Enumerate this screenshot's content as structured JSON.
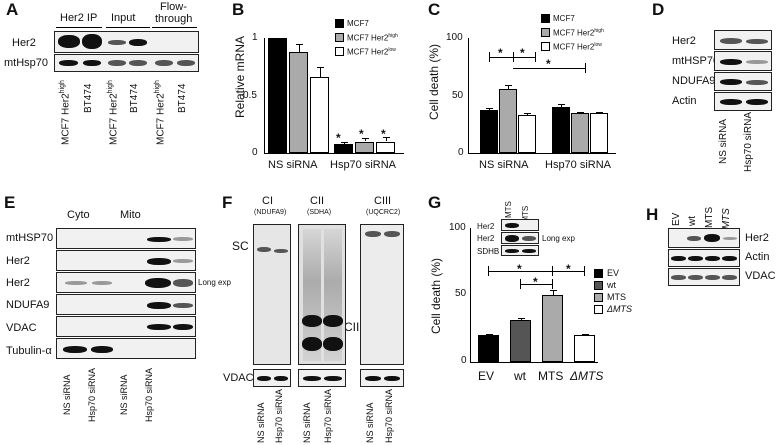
{
  "panels": {
    "A": {
      "letter": "A",
      "headers": [
        "Her2 IP",
        "Input",
        "Flow-",
        "through"
      ],
      "rows": [
        "Her2",
        "mtHsp70"
      ],
      "lanes": [
        "MCF7 Her2",
        "high",
        "BT474",
        "MCF7 Her2",
        "high",
        "BT474",
        "MCF7 Her2",
        "high",
        "BT474"
      ]
    },
    "B": {
      "letter": "B",
      "legend": [
        {
          "label": "MCF7",
          "sup": "",
          "color": "#000000"
        },
        {
          "label": "MCF7 Her2",
          "sup": "high",
          "color": "#aaaaaa"
        },
        {
          "label": "MCF7 Her2",
          "sup": "low",
          "color": "#ffffff"
        }
      ],
      "stars": [
        "*",
        "*",
        "*"
      ]
    },
    "C": {
      "letter": "C",
      "legend": [
        {
          "label": "MCF7",
          "sup": "",
          "color": "#000000"
        },
        {
          "label": "MCF7 Her2",
          "sup": "high",
          "color": "#aaaaaa"
        },
        {
          "label": "MCF7 Her2",
          "sup": "low",
          "color": "#ffffff"
        }
      ],
      "stars": [
        "*",
        "*",
        "*"
      ]
    },
    "D": {
      "letter": "D",
      "rows": [
        "Her2",
        "mtHSP70",
        "NDUFA9",
        "Actin"
      ],
      "lanes": [
        "NS siRNA",
        "Hsp70 siRNA"
      ]
    },
    "E": {
      "letter": "E",
      "headers": [
        "Cyto",
        "Mito"
      ],
      "rows": [
        "mtHSP70",
        "Her2",
        "Her2",
        "NDUFA9",
        "VDAC",
        "Tubulin-α"
      ],
      "note": "Long exp",
      "lanes": [
        "NS siRNA",
        "Hsp70 siRNA",
        "NS siRNA",
        "Hsp70 siRNA"
      ]
    },
    "F": {
      "letter": "F",
      "complexes": [
        {
          "name": "CI",
          "sub": "(NDUFA9)"
        },
        {
          "name": "CII",
          "sub": "(SDHA)"
        },
        {
          "name": "CIII",
          "sub": "(UQCRC2)"
        }
      ],
      "sc_label": "SC",
      "cii_label": "CII",
      "loading": "VDAC",
      "lanes": [
        "NS siRNA",
        "Hsp70 siRNA",
        "NS siRNA",
        "Hsp70 siRNA",
        "NS siRNA",
        "Hsp70 siRNA"
      ]
    },
    "G": {
      "letter": "G",
      "inset": {
        "lanes": [
          "MTS",
          "ΔMTS"
        ],
        "rows": [
          "Her2",
          "Her2",
          "SDHB"
        ],
        "note": "Long exp"
      },
      "legend": [
        {
          "label": "EV",
          "color": "#000000"
        },
        {
          "label": "wt",
          "color": "#555555"
        },
        {
          "label": "MTS",
          "color": "#aaaaaa"
        },
        {
          "label": "ΔMTS",
          "color": "#ffffff"
        }
      ],
      "stars": [
        "*",
        "*",
        "*"
      ]
    },
    "H": {
      "letter": "H",
      "lanes": [
        "EV",
        "wt",
        "MTS",
        "ΔMTS"
      ],
      "rows": [
        "Her2",
        "Actin",
        "VDAC"
      ]
    }
  },
  "chart_data": [
    {
      "type": "bar",
      "panel": "B",
      "ylabel": "Relative mRNA",
      "categories": [
        "NS siRNA",
        "Hsp70 siRNA"
      ],
      "series": [
        {
          "name": "MCF7",
          "values": [
            1.0,
            0.08
          ],
          "errors": [
            0.0,
            0.02
          ]
        },
        {
          "name": "MCF7 Her2high",
          "values": [
            0.88,
            0.1
          ],
          "errors": [
            0.07,
            0.03
          ]
        },
        {
          "name": "MCF7 Her2low",
          "values": [
            0.66,
            0.1
          ],
          "errors": [
            0.09,
            0.04
          ]
        }
      ],
      "ylim": [
        0,
        1
      ],
      "yticks": [
        "0",
        "0.5",
        "1"
      ]
    },
    {
      "type": "bar",
      "panel": "C",
      "ylabel": "Cell death (%)",
      "categories": [
        "NS siRNA",
        "Hsp70 siRNA"
      ],
      "series": [
        {
          "name": "MCF7",
          "values": [
            37,
            40
          ],
          "errors": [
            2,
            3
          ]
        },
        {
          "name": "MCF7 Her2high",
          "values": [
            56,
            35
          ],
          "errors": [
            3,
            1
          ]
        },
        {
          "name": "MCF7 Her2low",
          "values": [
            33,
            35
          ],
          "errors": [
            2,
            1
          ]
        }
      ],
      "ylim": [
        0,
        100
      ],
      "yticks": [
        "0",
        "50",
        "100"
      ]
    },
    {
      "type": "bar",
      "panel": "G",
      "ylabel": "Cell death (%)",
      "categories": [
        "EV",
        "wt",
        "MTS",
        "ΔMTS"
      ],
      "values": [
        20,
        31,
        50,
        20
      ],
      "errors": [
        1,
        2,
        4,
        1
      ],
      "colors": [
        "#000000",
        "#555555",
        "#aaaaaa",
        "#ffffff"
      ],
      "ylim": [
        0,
        100
      ],
      "yticks": [
        "0",
        "50",
        "100"
      ]
    }
  ]
}
